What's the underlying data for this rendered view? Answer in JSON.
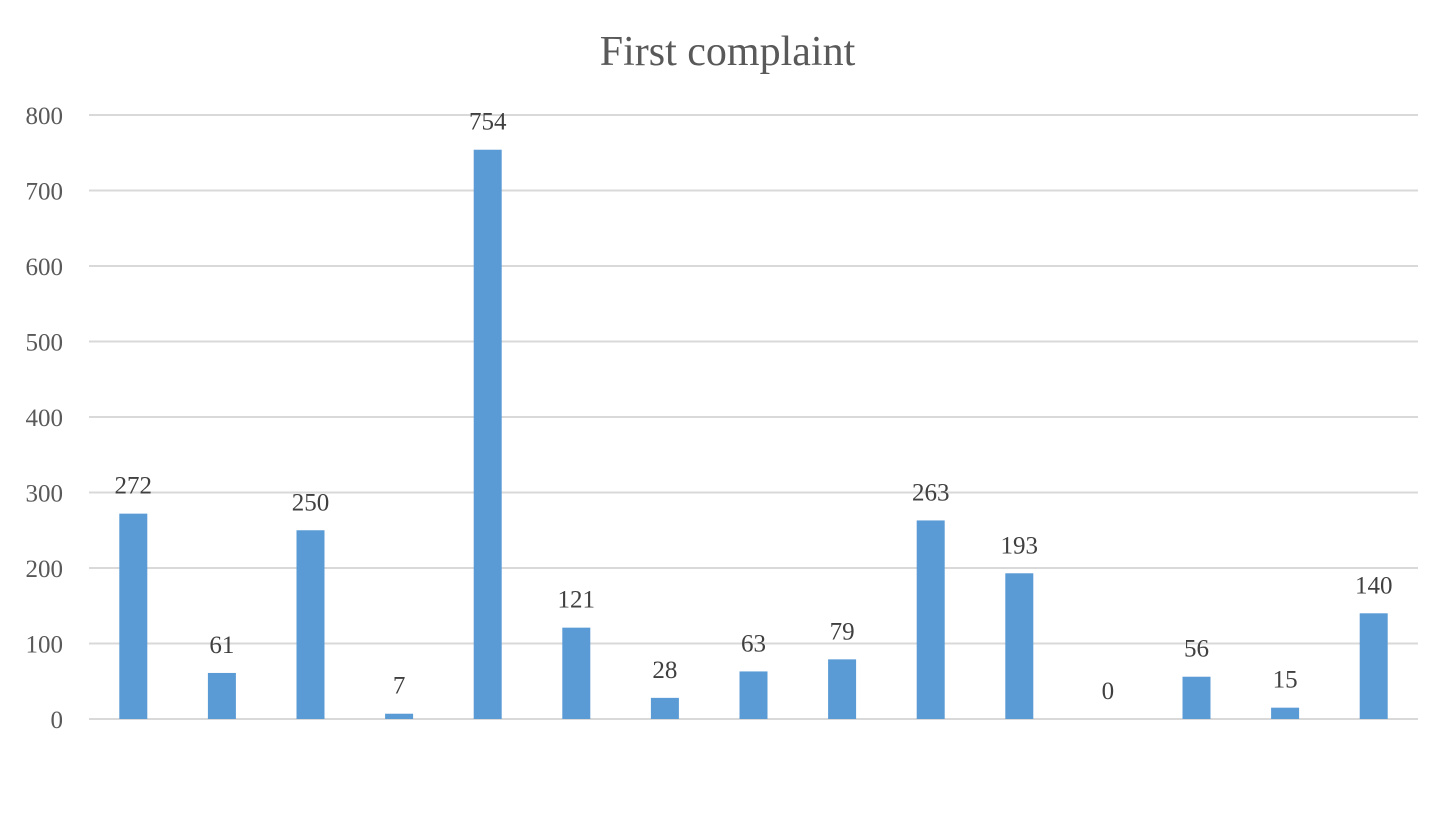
{
  "chart_data": {
    "type": "bar",
    "title": "First complaint",
    "xlabel": "",
    "ylabel": "",
    "categories": [
      "",
      "",
      "",
      "",
      "",
      "",
      "",
      "",
      "",
      "",
      "",
      "",
      "",
      "",
      ""
    ],
    "values": [
      272,
      61,
      250,
      7,
      754,
      121,
      28,
      63,
      79,
      263,
      193,
      0,
      56,
      15,
      140
    ],
    "ylim": [
      0,
      800
    ],
    "yticks": [
      0,
      100,
      200,
      300,
      400,
      500,
      600,
      700,
      800
    ],
    "grid": true,
    "legend": "none",
    "colors": {
      "bar": "#5B9BD5",
      "grid": "#D9D9D9",
      "text": "#595959"
    }
  }
}
